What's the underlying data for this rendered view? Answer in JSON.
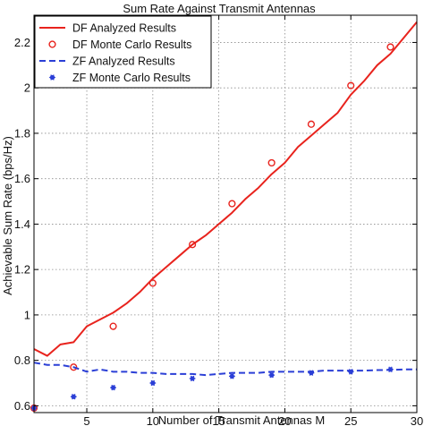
{
  "chart_data": {
    "type": "line",
    "title": "Sum Rate Against Transmit Antennas",
    "xlabel": "Number of Transmit Antennas M",
    "ylabel": "Achievable Sum Rate (bps/Hz)",
    "xlim": [
      1,
      30
    ],
    "ylim": [
      0.57,
      2.32
    ],
    "xticks": [
      5,
      10,
      15,
      20,
      25,
      30
    ],
    "xtick_labels": [
      "5",
      "10",
      "15",
      "20",
      "25",
      "30"
    ],
    "yticks": [
      0.6,
      0.8,
      1.0,
      1.2,
      1.4,
      1.6,
      1.8,
      2.0,
      2.2
    ],
    "ytick_labels": [
      "0.6",
      "0.8",
      "1",
      "1.2",
      "1.4",
      "1.6",
      "1.8",
      "2",
      "2.2"
    ],
    "grid": true,
    "legend_position": "top-left",
    "series": [
      {
        "name": "DF Analyzed Results",
        "style": "solid-line",
        "color": "#e8231d",
        "x": [
          1,
          2,
          3,
          4,
          5,
          6,
          7,
          8,
          9,
          10,
          11,
          12,
          13,
          14,
          15,
          16,
          17,
          18,
          19,
          20,
          21,
          22,
          23,
          24,
          25,
          26,
          27,
          28,
          29,
          30
        ],
        "y": [
          0.85,
          0.82,
          0.87,
          0.88,
          0.95,
          0.98,
          1.01,
          1.05,
          1.1,
          1.16,
          1.21,
          1.26,
          1.31,
          1.35,
          1.4,
          1.45,
          1.51,
          1.56,
          1.62,
          1.67,
          1.74,
          1.79,
          1.84,
          1.89,
          1.97,
          2.03,
          2.1,
          2.15,
          2.22,
          2.29
        ]
      },
      {
        "name": "DF Monte Carlo Results",
        "style": "circle-marker",
        "color": "#e8231d",
        "x": [
          1,
          4,
          7,
          10,
          13,
          16,
          19,
          22,
          25,
          28
        ],
        "y": [
          0.59,
          0.77,
          0.95,
          1.14,
          1.31,
          1.49,
          1.67,
          1.84,
          2.01,
          2.18
        ]
      },
      {
        "name": "ZF Analyzed Results",
        "style": "dashed-line",
        "color": "#2b3fd6",
        "x": [
          1,
          2,
          3,
          4,
          5,
          6,
          7,
          8,
          9,
          10,
          11,
          12,
          13,
          14,
          15,
          16,
          17,
          18,
          19,
          20,
          21,
          22,
          23,
          24,
          25,
          26,
          27,
          28,
          29,
          30
        ],
        "y": [
          0.79,
          0.78,
          0.78,
          0.77,
          0.75,
          0.76,
          0.75,
          0.75,
          0.745,
          0.745,
          0.74,
          0.74,
          0.74,
          0.735,
          0.74,
          0.745,
          0.745,
          0.745,
          0.75,
          0.75,
          0.75,
          0.75,
          0.755,
          0.755,
          0.755,
          0.755,
          0.757,
          0.758,
          0.76,
          0.76
        ]
      },
      {
        "name": "ZF Monte Carlo Results",
        "style": "star-marker",
        "color": "#2b3fd6",
        "x": [
          1,
          4,
          7,
          10,
          13,
          16,
          19,
          22,
          25,
          28
        ],
        "y": [
          0.59,
          0.64,
          0.68,
          0.7,
          0.72,
          0.73,
          0.735,
          0.745,
          0.75,
          0.76
        ]
      }
    ]
  }
}
